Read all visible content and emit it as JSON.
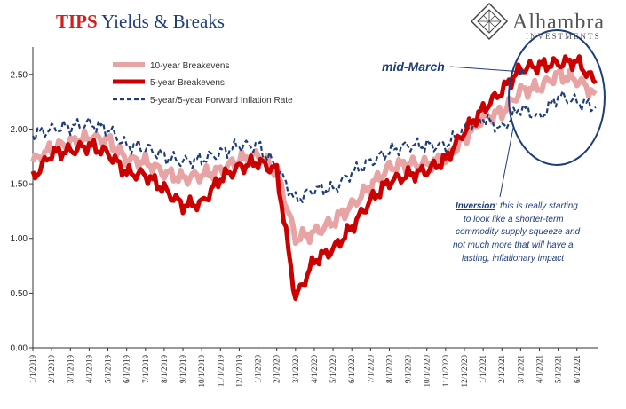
{
  "header": {
    "title_part1": "TIPS",
    "title_part2": " Yields & Breaks"
  },
  "logo": {
    "name": "Alhambra",
    "sub": "INVESTMENTS",
    "icon": "alhambra-diamond-logo-icon"
  },
  "colors": {
    "series_10y": "#e8a4a4",
    "series_5y": "#cc0000",
    "series_5y5y": "#1f3d7a",
    "annotation": "#1f3d7a",
    "title_red": "#d51e1e",
    "title_blue": "#1f3d7a"
  },
  "annotations": {
    "mid_march": "mid-March",
    "inversion_lead": "Inversion",
    "inversion_lines": [
      ": this is really starting",
      "to look like a shorter-term",
      "commodity supply squeeze and",
      "not much more that will have a",
      "lasting, inflationary impact"
    ]
  },
  "chart_data": {
    "type": "line",
    "ylim": [
      0,
      2.75
    ],
    "y_ticks": [
      "0.00",
      "0.50",
      "1.00",
      "1.50",
      "2.00",
      "2.50"
    ],
    "x_tick_labels": [
      "1/1/2019",
      "2/1/2019",
      "3/1/2019",
      "4/1/2019",
      "5/1/2019",
      "6/1/2019",
      "7/1/2019",
      "8/1/2019",
      "9/1/2019",
      "10/1/2019",
      "11/1/2019",
      "12/1/2019",
      "1/1/2020",
      "2/1/2020",
      "3/1/2020",
      "4/1/2020",
      "5/1/2020",
      "6/1/2020",
      "7/1/2020",
      "8/1/2020",
      "9/1/2020",
      "10/1/2020",
      "11/1/2020",
      "12/1/2020",
      "1/1/2021",
      "2/1/2021",
      "3/1/2021",
      "4/1/2021",
      "5/1/2021",
      "6/1/2021"
    ],
    "x_months": [
      0,
      1,
      2,
      3,
      4,
      5,
      6,
      7,
      8,
      9,
      10,
      11,
      12,
      13,
      14,
      15,
      16,
      17,
      18,
      19,
      20,
      21,
      22,
      23,
      24,
      25,
      26,
      27,
      28,
      29,
      30
    ],
    "x_range_months": [
      0,
      30.1
    ],
    "legend_position": "top-left",
    "grid": false,
    "series": [
      {
        "name": "10-year Breakevens",
        "style": "thick-light",
        "values": [
          1.7,
          1.82,
          1.88,
          1.92,
          1.9,
          1.72,
          1.7,
          1.6,
          1.55,
          1.58,
          1.62,
          1.72,
          1.76,
          1.62,
          1.0,
          1.05,
          1.15,
          1.3,
          1.48,
          1.65,
          1.68,
          1.68,
          1.72,
          1.92,
          2.1,
          2.15,
          2.35,
          2.38,
          2.5,
          2.45,
          2.32
        ]
      },
      {
        "name": "5-year Breakevens",
        "style": "thick-dark",
        "values": [
          1.55,
          1.78,
          1.8,
          1.85,
          1.78,
          1.6,
          1.58,
          1.45,
          1.3,
          1.32,
          1.55,
          1.65,
          1.7,
          1.62,
          0.45,
          0.8,
          0.9,
          1.1,
          1.35,
          1.52,
          1.58,
          1.62,
          1.72,
          1.98,
          2.18,
          2.35,
          2.55,
          2.58,
          2.6,
          2.62,
          2.42
        ]
      },
      {
        "name": "5-year/5-year Forward Inflation Rate",
        "style": "dashed",
        "values": [
          1.95,
          2.0,
          2.02,
          2.05,
          2.0,
          1.85,
          1.83,
          1.75,
          1.7,
          1.72,
          1.78,
          1.85,
          1.85,
          1.65,
          1.35,
          1.45,
          1.45,
          1.6,
          1.7,
          1.8,
          1.85,
          1.85,
          1.85,
          2.0,
          2.1,
          2.0,
          2.2,
          2.1,
          2.3,
          2.25,
          2.2
        ]
      }
    ]
  }
}
